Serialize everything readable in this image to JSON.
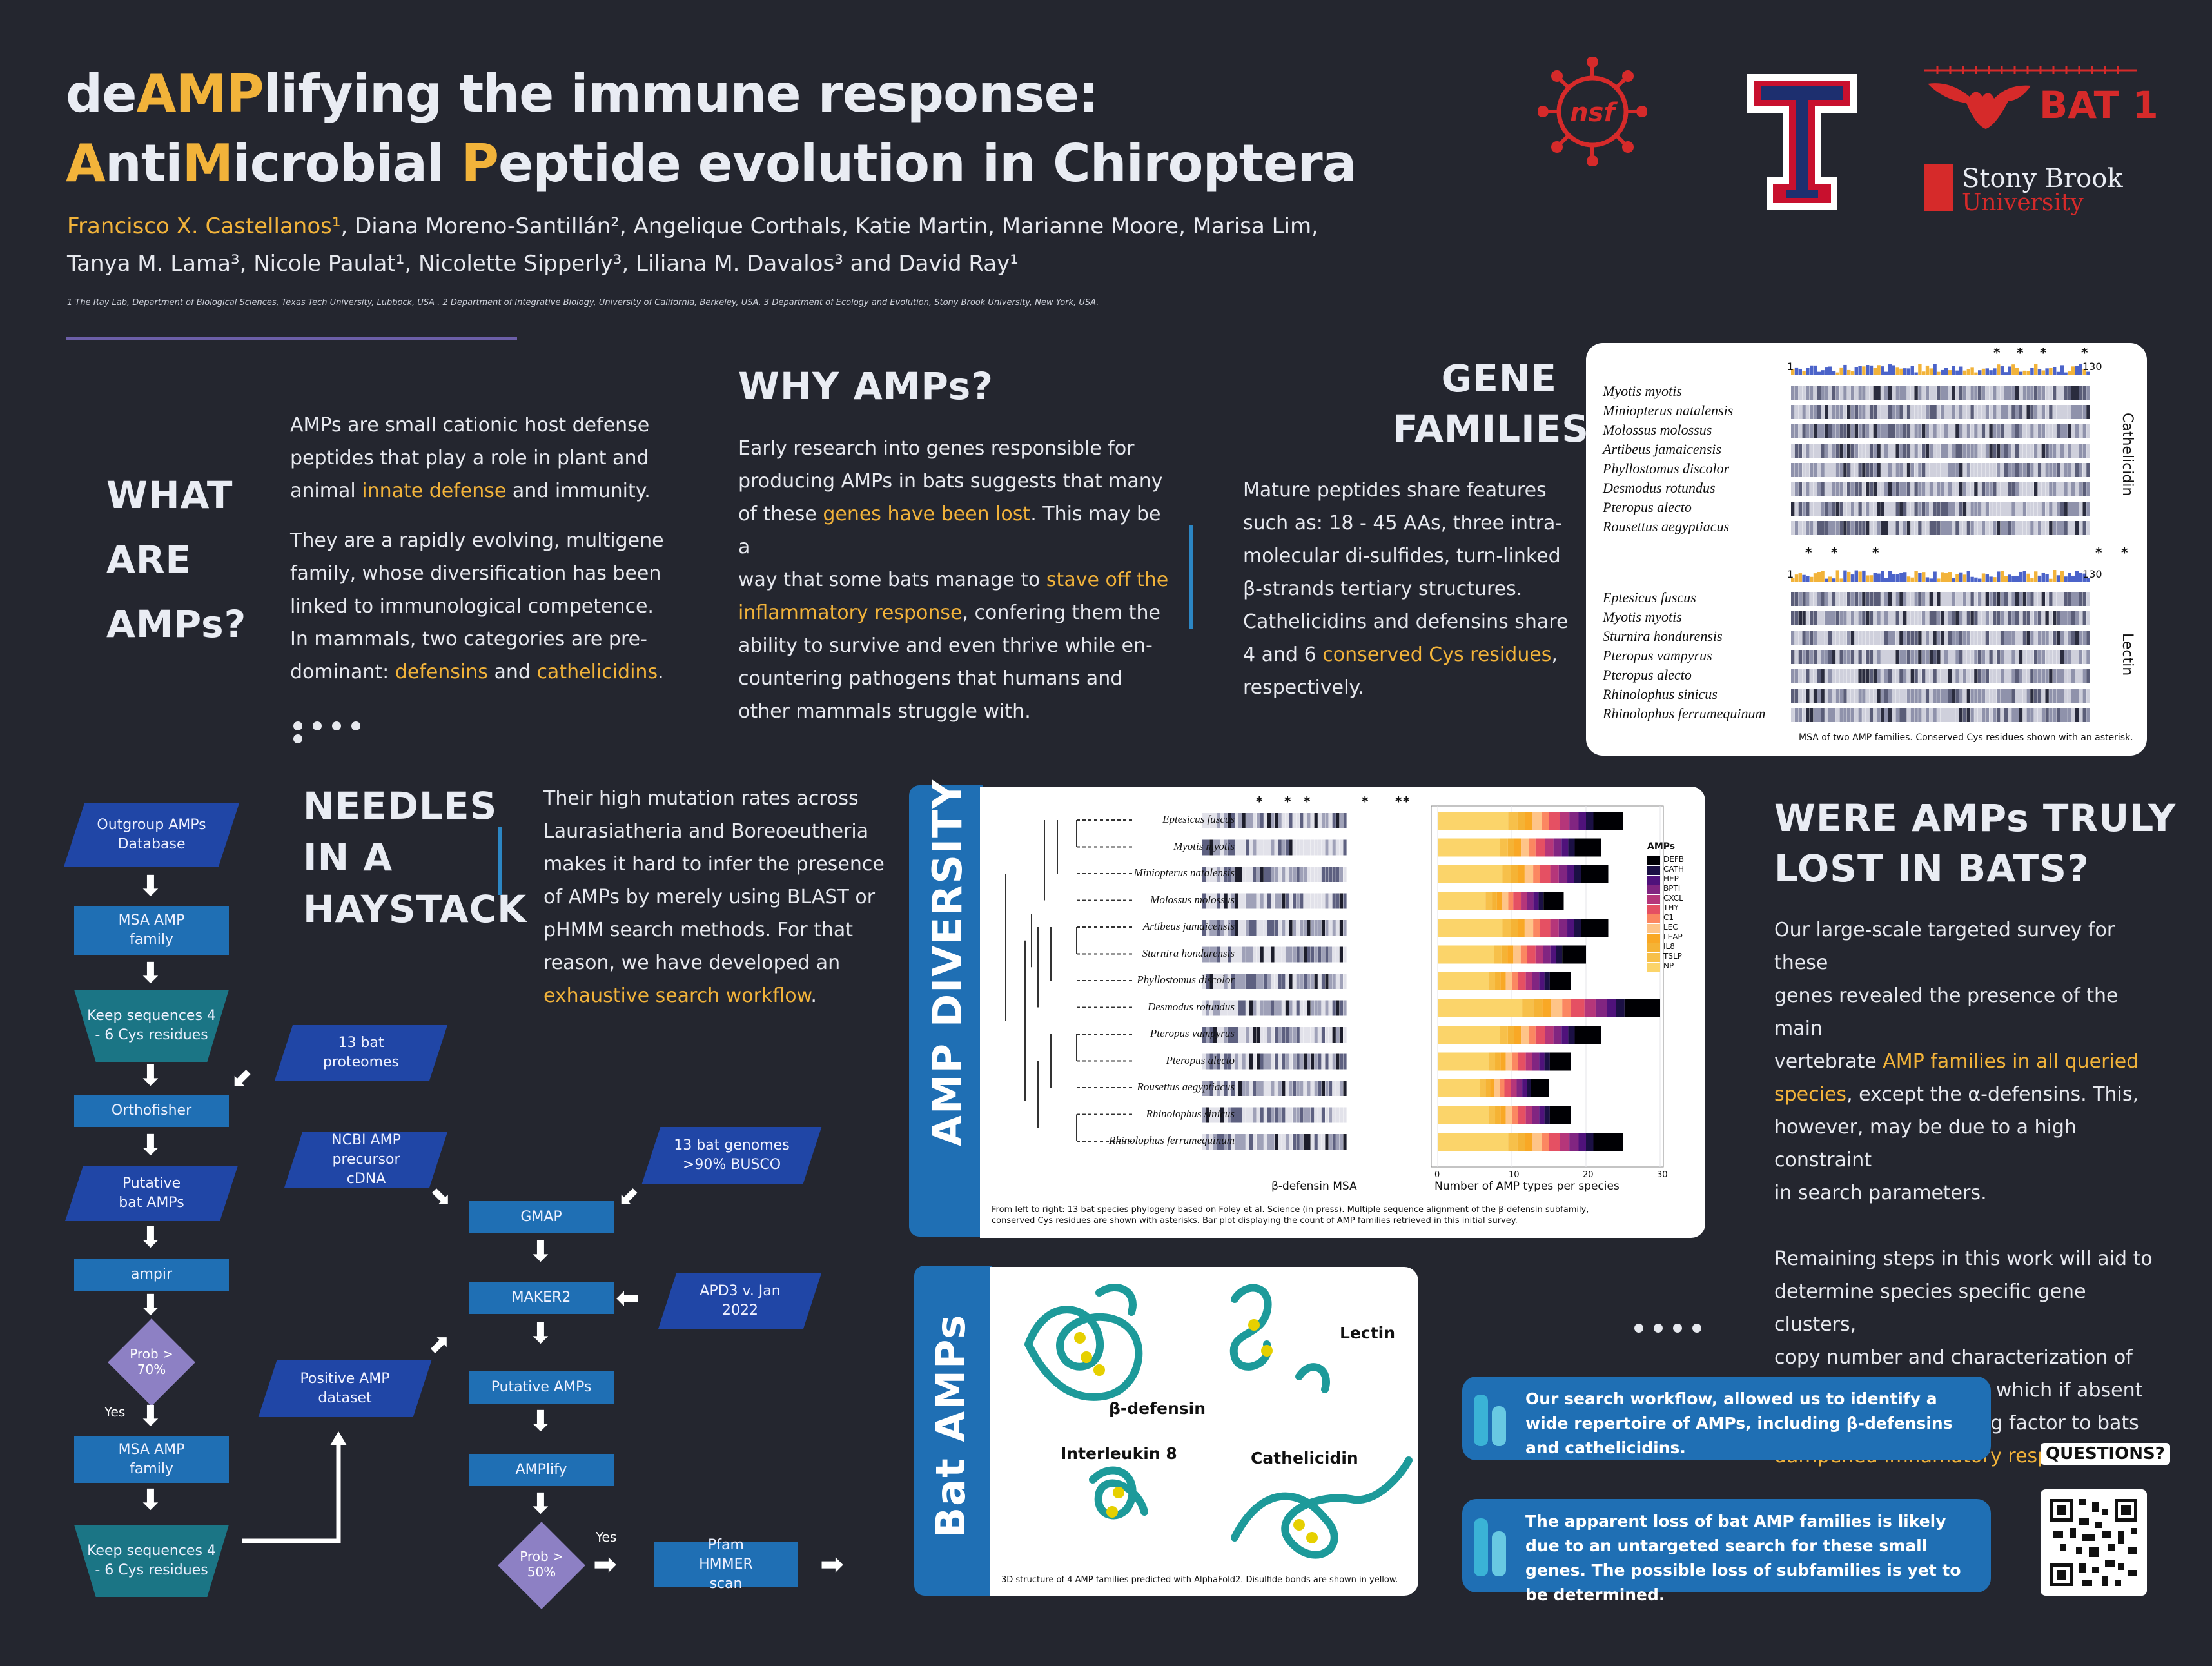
{
  "header": {
    "title_line1": [
      "de",
      "AMP",
      "lifying the immune response:"
    ],
    "title_line2": [
      "A",
      "nti",
      "M",
      "icrobial ",
      "P",
      "eptide evolution in Chiroptera"
    ],
    "authors_line1_lead": "Francisco X. Castellanos¹",
    "authors_line1_rest": ", Diana Moreno-Santillán²,  Angelique Corthals, Katie Martin, Marianne Moore, Marisa Lim,",
    "authors_line2": "Tanya M. Lama³, Nicole Paulat¹, Nicolette Sipperly³,  Liliana M. Davalos³ and David Ray¹",
    "affiliations": "1 The Ray Lab, Department of Biological Sciences, Texas Tech University, Lubbock, USA . 2 Department of Integrative Biology, University of California, Berkeley, USA. 3 Department of Ecology and Evolution, Stony Brook University, New York, USA.",
    "logos": {
      "nsf": "nsf",
      "bat1k": "BAT 1K",
      "stonybrook_1": "Stony Brook",
      "stonybrook_2": "University"
    }
  },
  "what_are": {
    "heading": [
      "WHAT",
      "ARE",
      "AMPs?"
    ],
    "p1": [
      "AMPs are small cationic host defense",
      "peptides that play a role in plant and",
      "animal ",
      "innate defense",
      " and immunity."
    ],
    "p2": [
      "They are a rapidly evolving, multigene",
      "family, whose diversification has been",
      "linked to immunological competence.",
      "In mammals, two categories are pre-",
      "dominant: ",
      "defensins",
      " and ",
      "cathelicidins",
      "."
    ]
  },
  "why": {
    "heading": "WHY AMPs?",
    "lines": [
      "Early research into genes responsible for",
      "producing AMPs in bats suggests that many",
      "of these ",
      "genes have been lost",
      ". This may be a",
      "way that some bats manage to ",
      "stave off the",
      "inflammatory response",
      ", confering them the",
      "ability to survive and even thrive while en-",
      "countering pathogens that humans and",
      "other mammals struggle with."
    ]
  },
  "gene_families": {
    "heading": [
      "GENE",
      "FAMILIES"
    ],
    "lines": [
      "Mature peptides share features",
      "such as: 18 - 45 AAs, three intra-",
      "molecular di-sulfides, turn-linked",
      "β-strands tertiary structures.",
      "Cathelicidins and defensins share",
      "4 and 6 ",
      "conserved Cys residues",
      ",",
      "respectively."
    ],
    "msa": {
      "top_species": [
        "Myotis myotis",
        "Miniopterus natalensis",
        "Molossus molossus",
        "Artibeus jamaicensis",
        "Phyllostomus discolor",
        "Desmodus rotundus",
        "Pteropus alecto",
        "Rousettus aegyptiacus"
      ],
      "top_label": "Cathelicidin",
      "bottom_species": [
        "Eptesicus fuscus",
        "Myotis myotis",
        "Sturnira hondurensis",
        "Pteropus vampyrus",
        "Pteropus alecto",
        "Rhinolophus sinicus",
        "Rhinolophus ferrumequinum"
      ],
      "bottom_label": "Lectin",
      "tick_start": "1",
      "tick_end": "130",
      "caption": "MSA of two AMP families. Conserved Cys residues shown with an asterisk."
    }
  },
  "needles": {
    "heading": [
      "NEEDLES",
      "IN A",
      "HAYSTACK"
    ],
    "lines": [
      "Their high mutation rates across",
      "Laurasiatheria and Boreoeutheria",
      "makes it hard to infer the presence",
      "of AMPs by merely using BLAST or",
      "pHMM search methods. For that",
      "reason, we have developed an",
      "exhaustive search workflow",
      "."
    ]
  },
  "flow": {
    "outgroup": "Outgroup AMPs Database",
    "msa1": "MSA AMP family",
    "keep1": "Keep sequences 4 - 6 Cys residues",
    "orthofisher": "Orthofisher",
    "putative_bat": "Putative bat AMPs",
    "ampir": "ampir",
    "prob70": "Prob > 70%",
    "yes1": "Yes",
    "msa2": "MSA AMP family",
    "keep2": "Keep sequences 4 - 6 Cys residues",
    "proteomes": "13 bat proteomes",
    "ncbi": "NCBI AMP precursor cDNA",
    "genomes": "13 bat genomes >90% BUSCO",
    "gmap": "GMAP",
    "maker2": "MAKER2",
    "apd3": "APD3 v. Jan 2022",
    "positive": "Positive AMP dataset",
    "putative_amps": "Putative AMPs",
    "amplify": "AMPlify",
    "prob50": "Prob > 50%",
    "yes2": "Yes",
    "pfam": "Pfam HMMER scan"
  },
  "diversity": {
    "tab_label": "AMP DIVERSITY",
    "species": [
      "Eptesicus fuscus",
      "Myotis myotis",
      "Miniopterus natalensis",
      "Molossus molossus",
      "Artibeus jamaicensis",
      "Sturnira hondurensis",
      "Phyllostomus discolor",
      "Desmodus rotundus",
      "Pteropus vampyrus",
      "Pteropus alecto",
      "Rousettus aegyptiacus",
      "Rhinolophus sinicus",
      "Rhinolophus ferrumequinum"
    ],
    "msa_label": "β-defensin MSA",
    "xlabel": "Number of AMP types per species",
    "xticks": [
      "0",
      "10",
      "20",
      "30"
    ],
    "legend_title": "AMPs",
    "legend": [
      {
        "name": "DEFB",
        "color": "#000004"
      },
      {
        "name": "CATH",
        "color": "#1b1044"
      },
      {
        "name": "HEP",
        "color": "#4f127b"
      },
      {
        "name": "BPTI",
        "color": "#812581"
      },
      {
        "name": "CXCL",
        "color": "#b5367a"
      },
      {
        "name": "THY",
        "color": "#e55063"
      },
      {
        "name": "C1",
        "color": "#fb8761"
      },
      {
        "name": "LEC",
        "color": "#fec488"
      },
      {
        "name": "LEAP",
        "color": "#f9a825"
      },
      {
        "name": "IL8",
        "color": "#f5b335"
      },
      {
        "name": "TSLP",
        "color": "#f7c04a"
      },
      {
        "name": "NP",
        "color": "#fbd46a"
      }
    ],
    "counts": [
      25,
      22,
      23,
      17,
      23,
      20,
      18,
      30,
      22,
      18,
      15,
      18,
      25
    ],
    "caption": "From left to right: 13 bat species phylogeny based on Foley et al. Science (in press). Multiple sequence alignment of the β-defensin subfamily, conserved Cys residues are shown with asterisks. Bar plot displaying the count of AMP families retrieved in this initial survey."
  },
  "bat_amps": {
    "tab_label": "Bat AMPs",
    "labels": {
      "bdef": "β-defensin",
      "lectin": "Lectin",
      "il8": "Interleukin 8",
      "cath": "Cathelicidin"
    },
    "caption": "3D structure of 4 AMP families predicted with AlphaFold2. Disulfide bonds are shown in yellow."
  },
  "lost": {
    "heading": [
      "WERE AMPs TRULY",
      "LOST IN BATS?"
    ],
    "p1": [
      "Our large-scale targeted survey for these",
      "genes  revealed the presence of the main",
      "vertebrate ",
      "AMP families in all queried",
      "species",
      ", except the α-defensins. This,",
      "however, may be due to a high constraint",
      "in search parameters."
    ],
    "p2": [
      "Remaining steps in this work will aid to",
      "determine species specific gene clusters,",
      "copy number and characterization of",
      "defensins subfamilies, which if absent",
      "might be a contributing factor to bats",
      "dampened imflamatory response",
      "."
    ]
  },
  "conclusions": {
    "c1": "Our  search workflow, allowed us to identify a wide repertoire of AMPs, including β-defensins and cathelicidins.",
    "c2": "The apparent loss of bat AMP families is likely due to an untargeted search for these small genes. The possible loss of subfamilies is yet to be determined."
  },
  "questions": "QUESTIONS?"
}
